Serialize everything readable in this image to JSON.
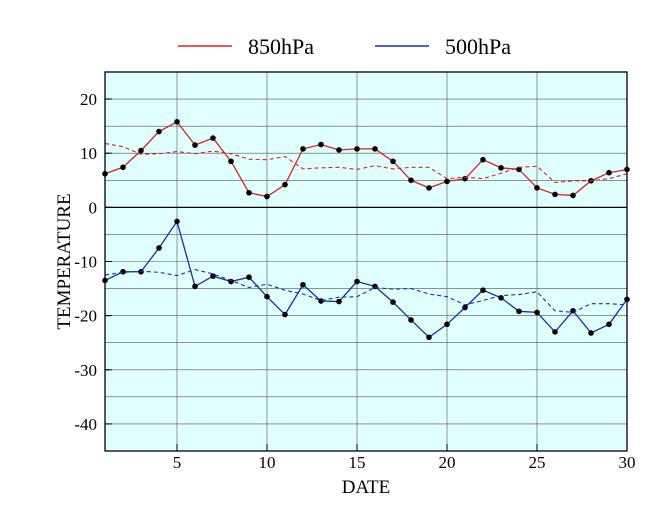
{
  "chart_data": {
    "type": "line",
    "title": "",
    "xlabel": "DATE",
    "ylabel": "TEMPERATURE",
    "xlim": [
      1,
      30
    ],
    "ylim": [
      -45,
      25
    ],
    "xticks": [
      5,
      10,
      15,
      20,
      25,
      30
    ],
    "yticks": [
      20,
      10,
      0,
      -10,
      -20,
      -30,
      -40
    ],
    "grid": true,
    "legend": "top",
    "plot_background": "#e0ffff",
    "x": [
      1,
      2,
      3,
      4,
      5,
      6,
      7,
      8,
      9,
      10,
      11,
      12,
      13,
      14,
      15,
      16,
      17,
      18,
      19,
      20,
      21,
      22,
      23,
      24,
      25,
      26,
      27,
      28,
      29,
      30
    ],
    "series": [
      {
        "name": "850hPa",
        "color": "#e02020",
        "style": "solid",
        "markers": true,
        "values": [
          6.2,
          7.4,
          10.5,
          14.0,
          15.8,
          11.5,
          12.8,
          8.5,
          2.7,
          2.0,
          4.2,
          10.8,
          11.6,
          10.6,
          10.8,
          10.8,
          8.5,
          5.0,
          3.6,
          4.8,
          5.3,
          8.8,
          7.3,
          7.0,
          3.6,
          2.4,
          2.2,
          4.9,
          6.4,
          7.0
        ]
      },
      {
        "name": "",
        "color": "#e02020",
        "style": "dashed",
        "markers": false,
        "values": [
          11.8,
          11.2,
          9.8,
          9.9,
          10.3,
          9.9,
          10.4,
          9.9,
          8.9,
          8.8,
          9.4,
          7.1,
          7.3,
          7.4,
          7.0,
          7.7,
          7.1,
          7.4,
          7.4,
          5.3,
          5.6,
          5.3,
          6.3,
          7.4,
          7.6,
          4.6,
          4.9,
          4.9,
          5.3,
          6.2
        ]
      },
      {
        "name": "500hPa",
        "color": "#1a2fa8",
        "style": "solid",
        "markers": true,
        "values": [
          -13.5,
          -11.9,
          -11.9,
          -7.5,
          -2.6,
          -14.6,
          -12.7,
          -13.7,
          -12.9,
          -16.5,
          -19.8,
          -14.3,
          -17.3,
          -17.4,
          -13.7,
          -14.6,
          -17.5,
          -20.8,
          -24.0,
          -21.6,
          -18.5,
          -15.3,
          -16.7,
          -19.2,
          -19.4,
          -23.0,
          -19.1,
          -23.2,
          -21.6,
          -17.0
        ]
      },
      {
        "name": "",
        "color": "#1a2fa8",
        "style": "dashed",
        "markers": false,
        "values": [
          -12.5,
          -12.0,
          -11.8,
          -12.0,
          -12.6,
          -11.5,
          -12.3,
          -13.5,
          -14.8,
          -14.2,
          -15.3,
          -16.0,
          -17.2,
          -16.6,
          -16.5,
          -14.8,
          -15.1,
          -15.0,
          -16.0,
          -16.5,
          -18.0,
          -17.2,
          -16.3,
          -16.1,
          -15.6,
          -19.1,
          -19.4,
          -17.8,
          -17.8,
          -18.0
        ]
      }
    ]
  }
}
